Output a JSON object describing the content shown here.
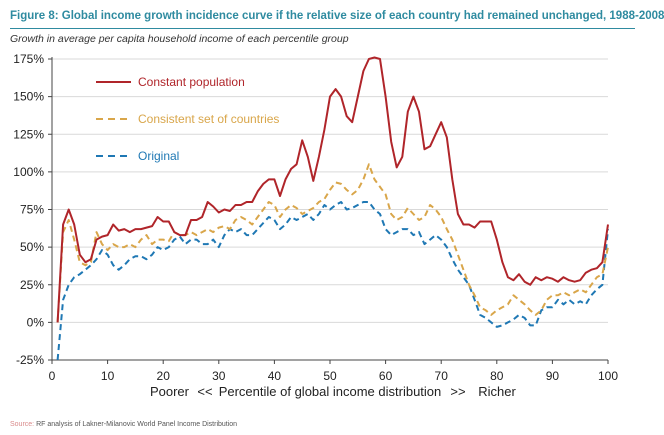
{
  "header": {
    "title": "Figure 8:  Global income growth incidence curve if the relative size of each country had remained unchanged, 1988-2008",
    "subtitle": "Growth in average per capita household income of each percentile group"
  },
  "footer": {
    "source_label": "Source:",
    "source_text": " RF analysis of Lakner-Milanovic World Panel Income Distribution"
  },
  "colors": {
    "constant": "#b0252a",
    "consistent": "#d9a64a",
    "original": "#1f78b4"
  },
  "chart_data": {
    "type": "line",
    "title": "Global income growth incidence curve if the relative size of each country had remained unchanged, 1988-2008",
    "ylabel": "Growth in average per capita household income of each percentile group",
    "xlabel": "Poorer   <<   Percentile of global income distribution   >>   Richer",
    "xlabel_parts": {
      "left": "Poorer",
      "left_arrows": "<<",
      "center": "Percentile of global income distribution",
      "right_arrows": ">>",
      "right": "Richer"
    },
    "xlim": [
      0,
      100
    ],
    "ylim": [
      -25,
      175
    ],
    "xticks": [
      0,
      10,
      20,
      30,
      40,
      50,
      60,
      70,
      80,
      90,
      100
    ],
    "yticks": [
      -25,
      0,
      25,
      50,
      75,
      100,
      125,
      150,
      175
    ],
    "ytick_labels": [
      "-25%",
      "0%",
      "25%",
      "50%",
      "75%",
      "100%",
      "125%",
      "150%",
      "175%"
    ],
    "grid": "horizontal",
    "legend": "top-left",
    "series": [
      {
        "name": "Constant population",
        "style": "solid",
        "points": [
          [
            1,
            0
          ],
          [
            2,
            65
          ],
          [
            3,
            75
          ],
          [
            4,
            65
          ],
          [
            5,
            45
          ],
          [
            6,
            40
          ],
          [
            7,
            42
          ],
          [
            8,
            55
          ],
          [
            9,
            57
          ],
          [
            10,
            58
          ],
          [
            11,
            65
          ],
          [
            12,
            61
          ],
          [
            13,
            62
          ],
          [
            14,
            60
          ],
          [
            15,
            62
          ],
          [
            16,
            62
          ],
          [
            17,
            63
          ],
          [
            18,
            64
          ],
          [
            19,
            70
          ],
          [
            20,
            67
          ],
          [
            21,
            67
          ],
          [
            22,
            60
          ],
          [
            23,
            58
          ],
          [
            24,
            58
          ],
          [
            25,
            68
          ],
          [
            26,
            68
          ],
          [
            27,
            70
          ],
          [
            28,
            80
          ],
          [
            29,
            77
          ],
          [
            30,
            73
          ],
          [
            31,
            75
          ],
          [
            32,
            74
          ],
          [
            33,
            78
          ],
          [
            34,
            78
          ],
          [
            35,
            80
          ],
          [
            36,
            80
          ],
          [
            37,
            87
          ],
          [
            38,
            92
          ],
          [
            39,
            95
          ],
          [
            40,
            95
          ],
          [
            41,
            84
          ],
          [
            42,
            95
          ],
          [
            43,
            102
          ],
          [
            44,
            105
          ],
          [
            45,
            121
          ],
          [
            46,
            110
          ],
          [
            47,
            94
          ],
          [
            48,
            110
          ],
          [
            49,
            128
          ],
          [
            50,
            150
          ],
          [
            51,
            155
          ],
          [
            52,
            150
          ],
          [
            53,
            137
          ],
          [
            54,
            133
          ],
          [
            55,
            150
          ],
          [
            56,
            167
          ],
          [
            57,
            175
          ],
          [
            58,
            176
          ],
          [
            59,
            175
          ],
          [
            60,
            150
          ],
          [
            61,
            120
          ],
          [
            62,
            103
          ],
          [
            63,
            110
          ],
          [
            64,
            140
          ],
          [
            65,
            150
          ],
          [
            66,
            140
          ],
          [
            67,
            115
          ],
          [
            68,
            117
          ],
          [
            69,
            125
          ],
          [
            70,
            133
          ],
          [
            71,
            123
          ],
          [
            72,
            95
          ],
          [
            73,
            72
          ],
          [
            74,
            65
          ],
          [
            75,
            65
          ],
          [
            76,
            63
          ],
          [
            77,
            67
          ],
          [
            78,
            67
          ],
          [
            79,
            67
          ],
          [
            80,
            55
          ],
          [
            81,
            40
          ],
          [
            82,
            30
          ],
          [
            83,
            28
          ],
          [
            84,
            32
          ],
          [
            85,
            27
          ],
          [
            86,
            25
          ],
          [
            87,
            30
          ],
          [
            88,
            28
          ],
          [
            89,
            30
          ],
          [
            90,
            29
          ],
          [
            91,
            27
          ],
          [
            92,
            30
          ],
          [
            93,
            28
          ],
          [
            94,
            27
          ],
          [
            95,
            28
          ],
          [
            96,
            33
          ],
          [
            97,
            35
          ],
          [
            98,
            36
          ],
          [
            99,
            40
          ],
          [
            100,
            65
          ]
        ]
      },
      {
        "name": "Consistent set of countries",
        "style": "dashed",
        "points": [
          [
            1,
            0
          ],
          [
            2,
            60
          ],
          [
            3,
            68
          ],
          [
            4,
            55
          ],
          [
            5,
            40
          ],
          [
            6,
            38
          ],
          [
            7,
            40
          ],
          [
            8,
            60
          ],
          [
            9,
            52
          ],
          [
            10,
            48
          ],
          [
            11,
            52
          ],
          [
            12,
            50
          ],
          [
            13,
            50
          ],
          [
            14,
            52
          ],
          [
            15,
            50
          ],
          [
            16,
            55
          ],
          [
            17,
            58
          ],
          [
            18,
            52
          ],
          [
            19,
            55
          ],
          [
            20,
            55
          ],
          [
            21,
            54
          ],
          [
            22,
            60
          ],
          [
            23,
            58
          ],
          [
            24,
            58
          ],
          [
            25,
            60
          ],
          [
            26,
            58
          ],
          [
            27,
            60
          ],
          [
            28,
            62
          ],
          [
            29,
            60
          ],
          [
            30,
            63
          ],
          [
            31,
            64
          ],
          [
            32,
            62
          ],
          [
            33,
            68
          ],
          [
            34,
            70
          ],
          [
            35,
            68
          ],
          [
            36,
            65
          ],
          [
            37,
            70
          ],
          [
            38,
            75
          ],
          [
            39,
            80
          ],
          [
            40,
            78
          ],
          [
            41,
            70
          ],
          [
            42,
            75
          ],
          [
            43,
            78
          ],
          [
            44,
            76
          ],
          [
            45,
            72
          ],
          [
            46,
            74
          ],
          [
            47,
            76
          ],
          [
            48,
            80
          ],
          [
            49,
            82
          ],
          [
            50,
            88
          ],
          [
            51,
            93
          ],
          [
            52,
            92
          ],
          [
            53,
            88
          ],
          [
            54,
            85
          ],
          [
            55,
            88
          ],
          [
            56,
            95
          ],
          [
            57,
            105
          ],
          [
            58,
            95
          ],
          [
            59,
            90
          ],
          [
            60,
            85
          ],
          [
            61,
            72
          ],
          [
            62,
            68
          ],
          [
            63,
            70
          ],
          [
            64,
            76
          ],
          [
            65,
            72
          ],
          [
            66,
            68
          ],
          [
            67,
            70
          ],
          [
            68,
            78
          ],
          [
            69,
            75
          ],
          [
            70,
            70
          ],
          [
            71,
            62
          ],
          [
            72,
            55
          ],
          [
            73,
            45
          ],
          [
            74,
            35
          ],
          [
            75,
            25
          ],
          [
            76,
            18
          ],
          [
            77,
            10
          ],
          [
            78,
            8
          ],
          [
            79,
            5
          ],
          [
            80,
            8
          ],
          [
            81,
            10
          ],
          [
            82,
            12
          ],
          [
            83,
            18
          ],
          [
            84,
            15
          ],
          [
            85,
            12
          ],
          [
            86,
            8
          ],
          [
            87,
            5
          ],
          [
            88,
            8
          ],
          [
            89,
            15
          ],
          [
            90,
            18
          ],
          [
            91,
            18
          ],
          [
            92,
            20
          ],
          [
            93,
            18
          ],
          [
            94,
            20
          ],
          [
            95,
            22
          ],
          [
            96,
            20
          ],
          [
            97,
            25
          ],
          [
            98,
            30
          ],
          [
            99,
            32
          ],
          [
            100,
            50
          ]
        ]
      },
      {
        "name": "Original",
        "style": "dashed",
        "points": [
          [
            1,
            -25
          ],
          [
            2,
            15
          ],
          [
            3,
            25
          ],
          [
            4,
            30
          ],
          [
            5,
            32
          ],
          [
            6,
            35
          ],
          [
            7,
            38
          ],
          [
            8,
            42
          ],
          [
            9,
            48
          ],
          [
            10,
            45
          ],
          [
            11,
            38
          ],
          [
            12,
            35
          ],
          [
            13,
            38
          ],
          [
            14,
            42
          ],
          [
            15,
            44
          ],
          [
            16,
            44
          ],
          [
            17,
            42
          ],
          [
            18,
            45
          ],
          [
            19,
            50
          ],
          [
            20,
            48
          ],
          [
            21,
            50
          ],
          [
            22,
            55
          ],
          [
            23,
            57
          ],
          [
            24,
            52
          ],
          [
            25,
            55
          ],
          [
            26,
            55
          ],
          [
            27,
            52
          ],
          [
            28,
            52
          ],
          [
            29,
            55
          ],
          [
            30,
            50
          ],
          [
            31,
            58
          ],
          [
            32,
            62
          ],
          [
            33,
            60
          ],
          [
            34,
            62
          ],
          [
            35,
            58
          ],
          [
            36,
            58
          ],
          [
            37,
            62
          ],
          [
            38,
            66
          ],
          [
            39,
            70
          ],
          [
            40,
            68
          ],
          [
            41,
            62
          ],
          [
            42,
            65
          ],
          [
            43,
            70
          ],
          [
            44,
            68
          ],
          [
            45,
            70
          ],
          [
            46,
            72
          ],
          [
            47,
            68
          ],
          [
            48,
            72
          ],
          [
            49,
            78
          ],
          [
            50,
            75
          ],
          [
            51,
            78
          ],
          [
            52,
            80
          ],
          [
            53,
            75
          ],
          [
            54,
            76
          ],
          [
            55,
            78
          ],
          [
            56,
            80
          ],
          [
            57,
            80
          ],
          [
            58,
            75
          ],
          [
            59,
            72
          ],
          [
            60,
            62
          ],
          [
            61,
            58
          ],
          [
            62,
            60
          ],
          [
            63,
            62
          ],
          [
            64,
            62
          ],
          [
            65,
            58
          ],
          [
            66,
            60
          ],
          [
            67,
            52
          ],
          [
            68,
            55
          ],
          [
            69,
            58
          ],
          [
            70,
            55
          ],
          [
            71,
            50
          ],
          [
            72,
            42
          ],
          [
            73,
            35
          ],
          [
            74,
            30
          ],
          [
            75,
            25
          ],
          [
            76,
            15
          ],
          [
            77,
            5
          ],
          [
            78,
            3
          ],
          [
            79,
            0
          ],
          [
            80,
            -3
          ],
          [
            81,
            -2
          ],
          [
            82,
            0
          ],
          [
            83,
            2
          ],
          [
            84,
            5
          ],
          [
            85,
            3
          ],
          [
            86,
            -2
          ],
          [
            87,
            -2
          ],
          [
            88,
            8
          ],
          [
            89,
            10
          ],
          [
            90,
            10
          ],
          [
            91,
            15
          ],
          [
            92,
            12
          ],
          [
            93,
            15
          ],
          [
            94,
            12
          ],
          [
            95,
            14
          ],
          [
            96,
            12
          ],
          [
            97,
            18
          ],
          [
            98,
            22
          ],
          [
            99,
            25
          ],
          [
            100,
            62
          ]
        ]
      }
    ]
  }
}
